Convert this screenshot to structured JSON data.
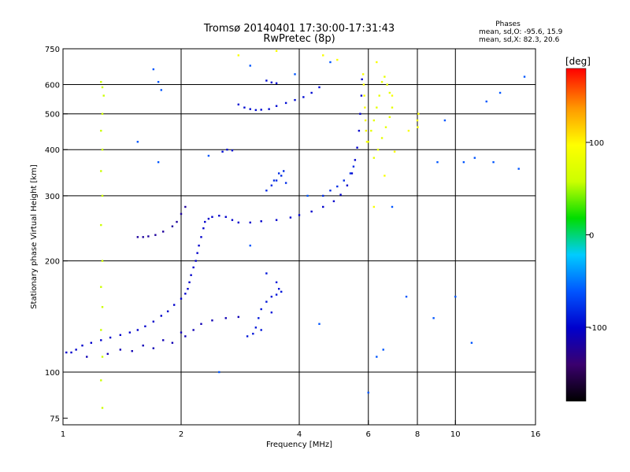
{
  "chart_data": {
    "type": "scatter",
    "title": "Tromsø 20140401 17:30:00-17:31:43",
    "subtitle": "RwPretec (8p)",
    "xlabel": "Frequency [MHz]",
    "ylabel": "Stationary phase Virtual Height [km]",
    "x_scale": "log",
    "y_scale": "log",
    "xlim": [
      1,
      16
    ],
    "ylim": [
      72,
      750
    ],
    "x_ticks": [
      1,
      2,
      4,
      6,
      8,
      10,
      16
    ],
    "y_ticks": [
      75,
      100,
      200,
      300,
      400,
      500,
      600,
      750
    ],
    "x_grid": [
      2,
      4,
      6,
      8,
      10
    ],
    "y_grid": [
      100,
      200,
      300,
      400,
      500,
      600
    ],
    "grid": true,
    "stats": {
      "header": "Phases",
      "line1": "mean, sd,O: -95.6, 15.9",
      "line2": "mean, sd,X:  82.3, 20.6"
    },
    "colorbar": {
      "label": "[deg]",
      "ticks": [
        100,
        0,
        -100
      ],
      "range": [
        -180,
        180
      ],
      "colors": [
        "#000000",
        "#3a006e",
        "#0000cc",
        "#0055ff",
        "#00ccff",
        "#00dd00",
        "#ccff00",
        "#ffff00",
        "#ff9900",
        "#ff0000"
      ]
    },
    "series": [
      {
        "values": [
          [
            1.02,
            113
          ],
          [
            1.05,
            113
          ],
          [
            1.08,
            115
          ],
          [
            1.12,
            118
          ],
          [
            1.18,
            120
          ],
          [
            1.25,
            122
          ],
          [
            1.32,
            124
          ],
          [
            1.4,
            126
          ],
          [
            1.48,
            128
          ],
          [
            1.55,
            130
          ],
          [
            1.62,
            133
          ],
          [
            1.7,
            137
          ],
          [
            1.78,
            142
          ],
          [
            1.85,
            146
          ],
          [
            1.92,
            152
          ],
          [
            2.0,
            158
          ],
          [
            2.05,
            163
          ],
          [
            2.08,
            168
          ],
          [
            2.1,
            175
          ],
          [
            2.12,
            183
          ],
          [
            2.15,
            192
          ],
          [
            2.18,
            200
          ],
          [
            2.2,
            210
          ],
          [
            2.22,
            220
          ],
          [
            2.25,
            232
          ],
          [
            2.28,
            245
          ],
          [
            2.3,
            255
          ],
          [
            2.35,
            260
          ],
          [
            2.4,
            263
          ],
          [
            2.5,
            265
          ],
          [
            2.6,
            263
          ],
          [
            2.7,
            258
          ],
          [
            2.8,
            254
          ],
          [
            3.0,
            254
          ],
          [
            3.2,
            256
          ],
          [
            3.5,
            258
          ],
          [
            3.8,
            262
          ],
          [
            4.0,
            266
          ],
          [
            4.3,
            272
          ],
          [
            4.6,
            280
          ],
          [
            4.9,
            290
          ],
          [
            5.1,
            302
          ],
          [
            5.3,
            320
          ],
          [
            5.45,
            345
          ],
          [
            5.55,
            375
          ],
          [
            5.62,
            405
          ],
          [
            5.68,
            450
          ],
          [
            5.72,
            500
          ],
          [
            5.76,
            560
          ],
          [
            5.78,
            620
          ]
        ]
      },
      {
        "values": [
          [
            1.15,
            110
          ],
          [
            1.3,
            112
          ],
          [
            1.5,
            114
          ],
          [
            1.7,
            116
          ],
          [
            1.9,
            120
          ],
          [
            2.05,
            125
          ],
          [
            2.15,
            130
          ],
          [
            2.25,
            135
          ],
          [
            2.4,
            138
          ],
          [
            2.6,
            140
          ],
          [
            2.8,
            141
          ],
          [
            1.4,
            115
          ],
          [
            1.6,
            118
          ],
          [
            1.8,
            122
          ],
          [
            2.0,
            128
          ]
        ]
      },
      {
        "values": [
          [
            2.55,
            395
          ],
          [
            2.62,
            400
          ],
          [
            2.7,
            398
          ],
          [
            2.8,
            530
          ],
          [
            2.9,
            520
          ],
          [
            3.0,
            515
          ],
          [
            3.1,
            512
          ],
          [
            3.2,
            513
          ],
          [
            3.35,
            515
          ],
          [
            3.5,
            525
          ],
          [
            3.7,
            535
          ],
          [
            3.9,
            545
          ],
          [
            4.1,
            555
          ],
          [
            4.3,
            570
          ],
          [
            4.5,
            590
          ],
          [
            3.5,
            605
          ],
          [
            3.3,
            615
          ],
          [
            3.4,
            608
          ]
        ]
      },
      {
        "values": [
          [
            1.55,
            232
          ],
          [
            1.6,
            232
          ],
          [
            1.65,
            233
          ],
          [
            1.72,
            235
          ],
          [
            1.8,
            240
          ],
          [
            1.9,
            248
          ],
          [
            1.95,
            255
          ],
          [
            2.0,
            268
          ],
          [
            2.05,
            280
          ]
        ]
      },
      {
        "values": [
          [
            2.95,
            125
          ],
          [
            3.05,
            127
          ],
          [
            3.1,
            132
          ],
          [
            3.15,
            140
          ],
          [
            3.2,
            148
          ],
          [
            3.3,
            155
          ],
          [
            3.4,
            160
          ],
          [
            3.5,
            162
          ],
          [
            3.6,
            165
          ],
          [
            3.5,
            175
          ],
          [
            3.3,
            185
          ],
          [
            3.2,
            130
          ],
          [
            3.4,
            145
          ],
          [
            3.55,
            168
          ]
        ]
      },
      {
        "values": [
          [
            3.3,
            310
          ],
          [
            3.4,
            320
          ],
          [
            3.5,
            330
          ],
          [
            3.6,
            340
          ],
          [
            3.65,
            350
          ],
          [
            3.55,
            345
          ],
          [
            3.45,
            330
          ],
          [
            3.7,
            325
          ],
          [
            4.6,
            300
          ],
          [
            4.8,
            310
          ],
          [
            5.0,
            318
          ],
          [
            5.2,
            330
          ],
          [
            5.4,
            345
          ],
          [
            5.5,
            360
          ]
        ]
      },
      {
        "values": [
          [
            6.0,
            420
          ],
          [
            6.1,
            450
          ],
          [
            6.2,
            480
          ],
          [
            6.3,
            520
          ],
          [
            6.4,
            560
          ],
          [
            6.5,
            610
          ],
          [
            6.6,
            630
          ],
          [
            6.7,
            600
          ],
          [
            6.8,
            570
          ],
          [
            6.9,
            520
          ],
          [
            6.2,
            380
          ],
          [
            6.35,
            400
          ],
          [
            6.5,
            430
          ],
          [
            6.65,
            460
          ],
          [
            6.8,
            490
          ]
        ]
      },
      {
        "values": [
          [
            1.25,
            610
          ],
          [
            1.26,
            590
          ],
          [
            1.27,
            560
          ],
          [
            1.26,
            500
          ],
          [
            1.25,
            450
          ],
          [
            1.26,
            400
          ],
          [
            1.25,
            350
          ],
          [
            1.26,
            300
          ],
          [
            1.25,
            250
          ],
          [
            1.26,
            200
          ],
          [
            1.25,
            170
          ],
          [
            1.26,
            150
          ],
          [
            1.25,
            130
          ],
          [
            1.26,
            110
          ],
          [
            1.25,
            95
          ],
          [
            1.26,
            80
          ]
        ]
      },
      {
        "values": [
          [
            5.82,
            640
          ],
          [
            5.84,
            600
          ],
          [
            5.86,
            560
          ],
          [
            5.88,
            520
          ],
          [
            5.9,
            480
          ],
          [
            5.92,
            450
          ],
          [
            5.95,
            420
          ],
          [
            8.0,
            480
          ],
          [
            8.02,
            460
          ],
          [
            8.05,
            500
          ],
          [
            7.6,
            450
          ],
          [
            7.0,
            395
          ],
          [
            6.9,
            560
          ],
          [
            6.6,
            340
          ],
          [
            6.2,
            280
          ],
          [
            5.0,
            700
          ],
          [
            6.3,
            690
          ],
          [
            4.6,
            720
          ],
          [
            3.5,
            740
          ],
          [
            2.8,
            720
          ]
        ]
      },
      {
        "values": [
          [
            1.7,
            660
          ],
          [
            2.35,
            385
          ],
          [
            1.75,
            370
          ],
          [
            1.55,
            420
          ],
          [
            1.75,
            610
          ],
          [
            1.78,
            580
          ],
          [
            3.0,
            675
          ],
          [
            4.2,
            300
          ],
          [
            3.9,
            640
          ],
          [
            4.8,
            690
          ],
          [
            6.0,
            88
          ],
          [
            6.3,
            110
          ],
          [
            6.55,
            115
          ],
          [
            9.0,
            370
          ],
          [
            10.5,
            370
          ],
          [
            11.2,
            380
          ],
          [
            12.5,
            370
          ],
          [
            10.0,
            160
          ],
          [
            11.0,
            120
          ],
          [
            12.0,
            540
          ],
          [
            13.0,
            570
          ],
          [
            14.5,
            355
          ],
          [
            15.0,
            630
          ],
          [
            9.4,
            480
          ],
          [
            8.8,
            140
          ],
          [
            7.5,
            160
          ],
          [
            6.9,
            280
          ],
          [
            4.5,
            135
          ],
          [
            3.0,
            220
          ],
          [
            2.5,
            100
          ]
        ]
      }
    ],
    "point_phases": [
      -100,
      -110,
      -95,
      -120,
      -90,
      -80,
      80,
      60,
      95,
      -60
    ]
  }
}
